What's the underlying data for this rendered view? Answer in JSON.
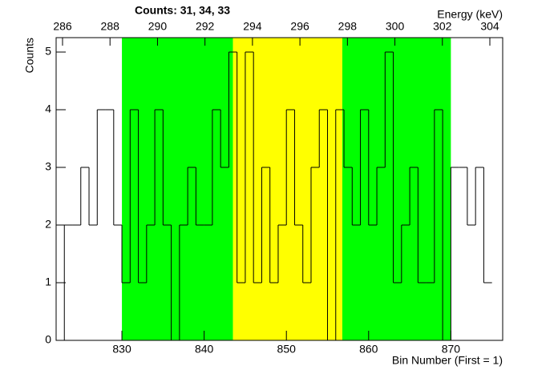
{
  "chart_data": {
    "type": "histogram",
    "title": "Counts:   31,   34,   33",
    "x_label": "Bin Number (First = 1)",
    "y_label": "Counts",
    "x2_label": "Energy (keV)",
    "bins": [
      823,
      824,
      825,
      826,
      827,
      828,
      829,
      830,
      831,
      832,
      833,
      834,
      835,
      836,
      837,
      838,
      839,
      840,
      841,
      842,
      843,
      844,
      845,
      846,
      847,
      848,
      849,
      850,
      851,
      852,
      853,
      854,
      855,
      856,
      857,
      858,
      859,
      860,
      861,
      862,
      863,
      864,
      865,
      866,
      867,
      868,
      869,
      870,
      871,
      872,
      873,
      874,
      875
    ],
    "values": [
      2,
      2,
      3,
      2,
      4,
      4,
      2,
      1,
      4,
      1,
      2,
      4,
      2,
      0,
      2,
      3,
      2,
      2,
      4,
      3,
      5,
      1,
      5,
      1,
      3,
      1,
      2,
      4,
      2,
      1,
      3,
      4,
      0,
      4,
      3,
      2,
      4,
      2,
      3,
      5,
      1,
      2,
      3,
      1,
      1,
      4,
      0,
      3,
      3,
      2,
      3,
      1
    ],
    "color": "#000000",
    "regions": [
      {
        "start": 830,
        "end": 843.5,
        "color": "#00ff00"
      },
      {
        "start": 843.5,
        "end": 856.8,
        "color": "#ffff00"
      },
      {
        "start": 856.8,
        "end": 870,
        "color": "#00ff00"
      }
    ],
    "xlim": [
      822,
      876.3
    ],
    "xticks": [
      830,
      840,
      850,
      860,
      870
    ],
    "ylim": [
      0,
      5.25
    ],
    "yticks": [
      0,
      1,
      2,
      3,
      4,
      5
    ],
    "x2lim": [
      285.73,
      304.54
    ],
    "x2ticks": [
      286,
      288,
      290,
      292,
      294,
      296,
      298,
      300,
      302,
      304
    ]
  }
}
